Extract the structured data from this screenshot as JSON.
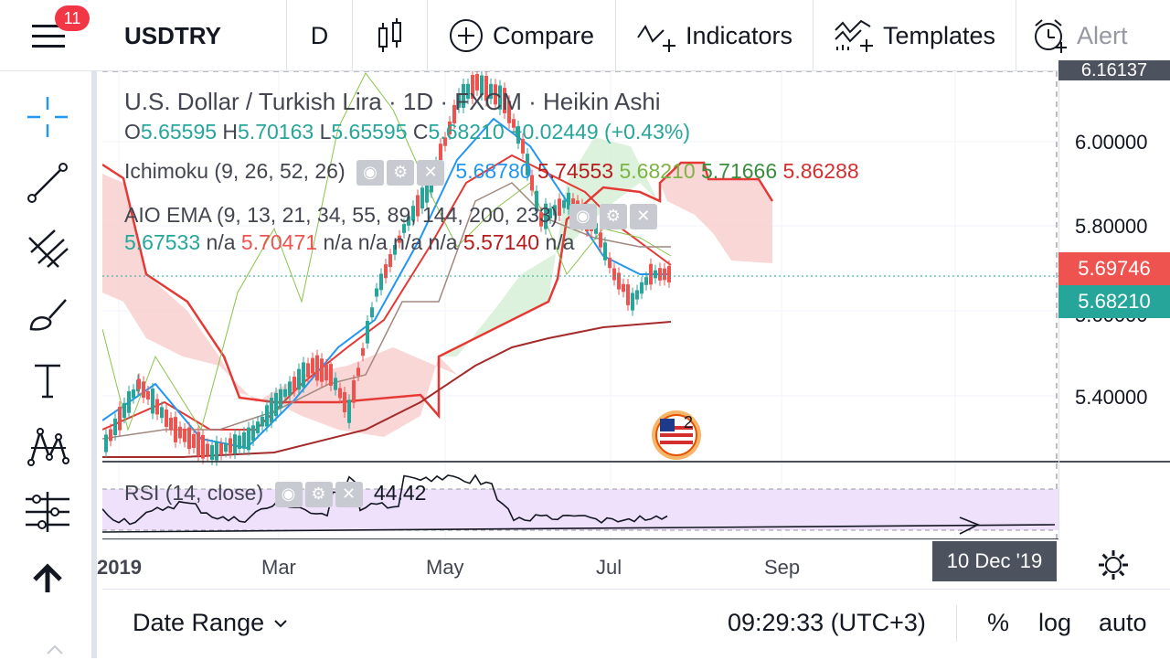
{
  "header": {
    "notification_count": "11",
    "symbol": "USDTRY",
    "interval": "D",
    "compare_label": "Compare",
    "indicators_label": "Indicators",
    "templates_label": "Templates",
    "alert_label": "Alert"
  },
  "legend": {
    "title": "U.S. Dollar / Turkish Lira · 1D · FXCM · Heikin Ashi",
    "ohlc": {
      "o_label": "O",
      "o": "5.65595",
      "h_label": "H",
      "h": "5.70163",
      "l_label": "L",
      "l": "5.65595",
      "c_label": "C",
      "c": "5.68210",
      "change": "+0.02449 (+0.43%)"
    },
    "ichimoku": {
      "name": "Ichimoku (9, 26, 52, 26)",
      "v1": "5.68780",
      "v2": "5.74553",
      "v3": "5.68210",
      "v4": "5.71666",
      "v5": "5.86288"
    },
    "aio_ema": {
      "name": "AIO EMA (9, 13, 21, 34, 55, 89, 144, 200, 233)",
      "v1": "5.67533",
      "na1": "n/a",
      "v2": "5.70471",
      "na2": "n/a n/a n/a n/a",
      "v3": "5.57140",
      "na3": "n/a"
    },
    "rsi": {
      "name": "RSI (14, close)",
      "value": "44.42"
    }
  },
  "price_scale": {
    "ticks": [
      "6.16137",
      "6.00000",
      "5.80000",
      "5.60000",
      "5.40000"
    ],
    "tag_red": "5.69746",
    "tag_green": "5.68210"
  },
  "time_axis": {
    "labels": [
      "2019",
      "Mar",
      "May",
      "Jul",
      "Sep"
    ],
    "crosshair_date": "10 Dec '19"
  },
  "bottom": {
    "date_range_label": "Date Range",
    "clock": "09:29:33 (UTC+3)",
    "percent_label": "%",
    "log_label": "log",
    "auto_label": "auto"
  },
  "colors": {
    "up": "#26a69a",
    "down": "#ef5350",
    "cloud_red": "#f8d0d0",
    "cloud_green": "#d4efd4",
    "rsi_band": "#efe0fb",
    "tool_active": "#2196f3"
  }
}
